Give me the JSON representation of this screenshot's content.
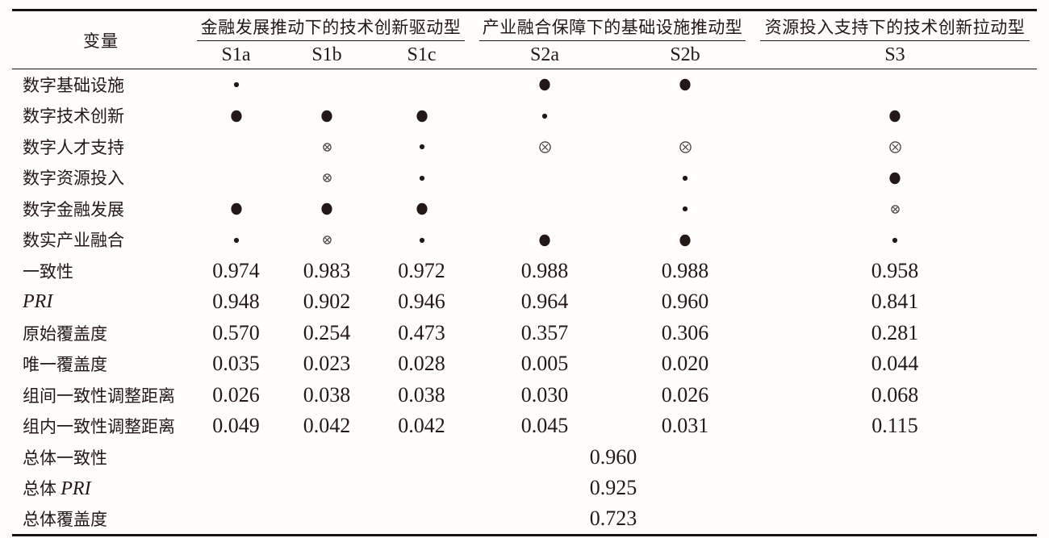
{
  "page": {
    "background": "#ffffff",
    "text_color": "#231815",
    "rule_color": "#161412",
    "symbol_color": "#231815"
  },
  "table": {
    "header": {
      "variable_label": "变量",
      "groups": [
        {
          "label": "金融发展推动下的技术创新驱动型",
          "columns": [
            "S1a",
            "S1b",
            "S1c"
          ]
        },
        {
          "label": "产业融合保障下的基础设施推动型",
          "columns": [
            "S2a",
            "S2b"
          ]
        },
        {
          "label": "资源投入支持下的技术创新拉动型",
          "columns": [
            "S3"
          ]
        }
      ]
    },
    "symbols_legend": {
      "core-present": "large filled circle (core condition present)",
      "peripheral-present": "small filled dot (peripheral condition present)",
      "core-absent": "large circled cross (core condition absent)",
      "peripheral-absent": "small circled cross (peripheral condition absent)",
      "blank": "condition may be present or absent"
    },
    "condition_rows": [
      {
        "label_parts": [
          {
            "t": "数字基础设施",
            "i": false
          }
        ],
        "cells": [
          "peripheral-present",
          "",
          "",
          "core-present",
          "core-present",
          ""
        ]
      },
      {
        "label_parts": [
          {
            "t": "数字技术创新",
            "i": false
          }
        ],
        "cells": [
          "core-present",
          "core-present",
          "core-present",
          "peripheral-present",
          "",
          "core-present"
        ]
      },
      {
        "label_parts": [
          {
            "t": "数字人才支持",
            "i": false
          }
        ],
        "cells": [
          "",
          "peripheral-absent",
          "peripheral-present",
          "core-absent",
          "core-absent",
          "core-absent"
        ]
      },
      {
        "label_parts": [
          {
            "t": "数字资源投入",
            "i": false
          }
        ],
        "cells": [
          "",
          "peripheral-absent",
          "peripheral-present",
          "",
          "peripheral-present",
          "core-present"
        ]
      },
      {
        "label_parts": [
          {
            "t": "数字金融发展",
            "i": false
          }
        ],
        "cells": [
          "core-present",
          "core-present",
          "core-present",
          "",
          "peripheral-present",
          "peripheral-absent"
        ]
      },
      {
        "label_parts": [
          {
            "t": "数实产业融合",
            "i": false
          }
        ],
        "cells": [
          "peripheral-present",
          "peripheral-absent",
          "peripheral-present",
          "core-present",
          "core-present",
          "peripheral-present"
        ]
      }
    ],
    "metric_rows": [
      {
        "label_parts": [
          {
            "t": "一致性",
            "i": false
          }
        ],
        "values": [
          "0.974",
          "0.983",
          "0.972",
          "0.988",
          "0.988",
          "0.958"
        ]
      },
      {
        "label_parts": [
          {
            "t": "PRI",
            "i": true
          }
        ],
        "values": [
          "0.948",
          "0.902",
          "0.946",
          "0.964",
          "0.960",
          "0.841"
        ]
      },
      {
        "label_parts": [
          {
            "t": "原始覆盖度",
            "i": false
          }
        ],
        "values": [
          "0.570",
          "0.254",
          "0.473",
          "0.357",
          "0.306",
          "0.281"
        ]
      },
      {
        "label_parts": [
          {
            "t": "唯一覆盖度",
            "i": false
          }
        ],
        "values": [
          "0.035",
          "0.023",
          "0.028",
          "0.005",
          "0.020",
          "0.044"
        ]
      },
      {
        "label_parts": [
          {
            "t": "组间一致性调整距离",
            "i": false
          }
        ],
        "values": [
          "0.026",
          "0.038",
          "0.038",
          "0.030",
          "0.026",
          "0.068"
        ]
      },
      {
        "label_parts": [
          {
            "t": "组内一致性调整距离",
            "i": false
          }
        ],
        "values": [
          "0.049",
          "0.042",
          "0.042",
          "0.045",
          "0.031",
          "0.115"
        ]
      }
    ],
    "summary_rows": [
      {
        "label_parts": [
          {
            "t": "总体一致性",
            "i": false
          }
        ],
        "value": "0.960"
      },
      {
        "label_parts": [
          {
            "t": "总体 ",
            "i": false
          },
          {
            "t": "PRI",
            "i": true
          }
        ],
        "value": "0.925"
      },
      {
        "label_parts": [
          {
            "t": "总体覆盖度",
            "i": false
          }
        ],
        "value": "0.723"
      }
    ]
  }
}
